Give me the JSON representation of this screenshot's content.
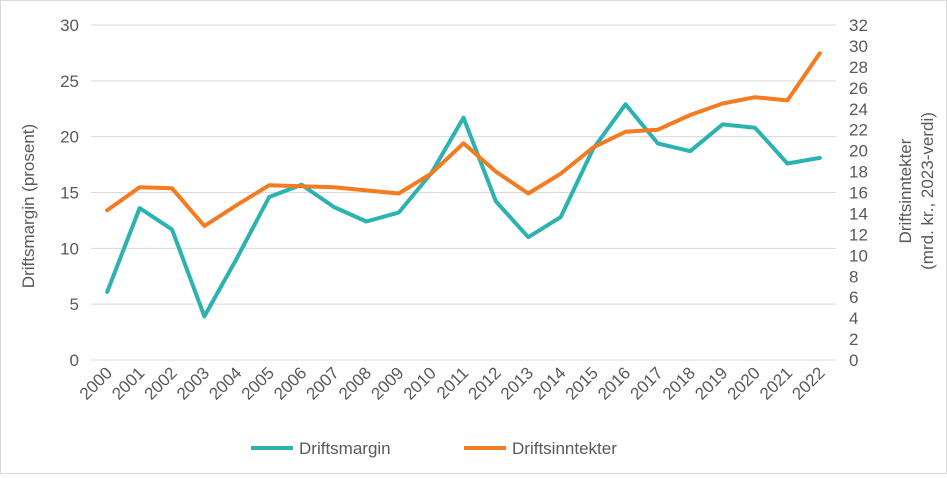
{
  "chart_data": {
    "type": "line",
    "title": "",
    "categories": [
      "2000",
      "2001",
      "2002",
      "2003",
      "2004",
      "2005",
      "2006",
      "2007",
      "2008",
      "2009",
      "2010",
      "2011",
      "2012",
      "2013",
      "2014",
      "2015",
      "2016",
      "2017",
      "2018",
      "2019",
      "2020",
      "2021",
      "2022"
    ],
    "ylabel": "Driftsmargin (prosent)",
    "ylabel2": [
      "Driftsinntekter",
      "(mrd. kr., 2023-verdi)"
    ],
    "ylim": [
      0,
      30
    ],
    "yticks": [
      0,
      5,
      10,
      15,
      20,
      25,
      30
    ],
    "ylim2": [
      0,
      32
    ],
    "yticks2": [
      0,
      2,
      4,
      6,
      8,
      10,
      12,
      14,
      16,
      18,
      20,
      22,
      24,
      26,
      28,
      30,
      32
    ],
    "grid": "horizontal",
    "legend_position": "bottom",
    "series": [
      {
        "name": "Driftsmargin",
        "axis": "left",
        "color": "#2ab3b0",
        "values": [
          6.1,
          13.6,
          11.7,
          3.9,
          9.1,
          14.6,
          15.7,
          13.7,
          12.4,
          13.2,
          16.7,
          21.7,
          14.2,
          11.0,
          12.8,
          18.9,
          22.9,
          19.4,
          18.7,
          21.1,
          20.8,
          17.6,
          18.1
        ]
      },
      {
        "name": "Driftsinntekter",
        "axis": "right",
        "color": "#f47b20",
        "values": [
          14.3,
          16.5,
          16.4,
          12.8,
          14.8,
          16.7,
          16.6,
          16.5,
          16.2,
          15.9,
          17.8,
          20.7,
          18.0,
          15.9,
          17.8,
          20.3,
          21.8,
          22.0,
          23.4,
          24.5,
          25.1,
          24.8,
          29.3
        ]
      }
    ]
  }
}
